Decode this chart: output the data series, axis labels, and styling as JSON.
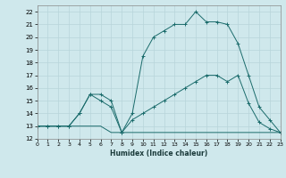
{
  "xlabel": "Humidex (Indice chaleur)",
  "bg_color": "#cfe8ec",
  "grid_color": "#b8d5da",
  "line_color": "#1a6b6b",
  "xlim": [
    0,
    23
  ],
  "ylim": [
    12,
    22.5
  ],
  "xticks": [
    0,
    1,
    2,
    3,
    4,
    5,
    6,
    7,
    8,
    9,
    10,
    11,
    12,
    13,
    14,
    15,
    16,
    17,
    18,
    19,
    20,
    21,
    22,
    23
  ],
  "yticks": [
    12,
    13,
    14,
    15,
    16,
    17,
    18,
    19,
    20,
    21,
    22
  ],
  "line1_x": [
    0,
    1,
    2,
    3,
    4,
    5,
    6,
    7,
    8,
    9,
    10,
    11,
    12,
    13,
    14,
    15,
    16,
    17,
    18,
    19,
    20,
    21,
    22,
    23
  ],
  "line1_y": [
    13,
    13,
    13,
    13,
    13,
    13,
    13,
    12.5,
    12.5,
    12.5,
    12.5,
    12.5,
    12.5,
    12.5,
    12.5,
    12.5,
    12.5,
    12.5,
    12.5,
    12.5,
    12.5,
    12.5,
    12.5,
    12.5
  ],
  "line2_x": [
    0,
    1,
    2,
    3,
    4,
    5,
    6,
    7,
    8,
    9,
    10,
    11,
    12,
    13,
    14,
    15,
    16,
    17,
    18,
    19,
    20,
    21,
    22,
    23
  ],
  "line2_y": [
    13,
    13,
    13,
    13,
    14,
    15.5,
    15,
    14.5,
    12.5,
    13.5,
    14,
    14.5,
    15,
    15.5,
    16,
    16.5,
    17,
    17,
    16.5,
    17,
    14.8,
    13.3,
    12.8,
    12.5
  ],
  "line3_x": [
    0,
    1,
    2,
    3,
    4,
    5,
    6,
    7,
    8,
    9,
    10,
    11,
    12,
    13,
    14,
    15,
    16,
    17,
    18,
    19,
    20,
    21,
    22,
    23
  ],
  "line3_y": [
    13,
    13,
    13,
    13,
    14,
    15.5,
    15.5,
    15,
    12.5,
    14,
    18.5,
    20,
    20.5,
    21,
    21,
    22,
    21.2,
    21.2,
    21,
    19.5,
    17,
    14.5,
    13.5,
    12.5
  ]
}
